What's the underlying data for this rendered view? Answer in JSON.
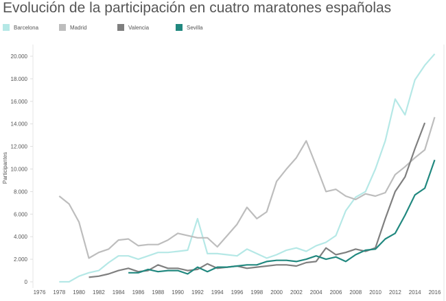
{
  "chart_data": {
    "type": "line",
    "title": "Evolución de la participación en cuatro maratones españolas",
    "xlabel": "",
    "ylabel": "Participantes",
    "xlim": [
      1976,
      2016
    ],
    "ylim": [
      0,
      21000
    ],
    "x_ticks": [
      "1976",
      "1978",
      "1980",
      "1982",
      "1984",
      "1986",
      "1988",
      "1990",
      "1992",
      "1994",
      "1996",
      "1998",
      "2000",
      "2002",
      "2004",
      "2006",
      "2008",
      "2010",
      "2012",
      "2014",
      "2016"
    ],
    "y_ticks": [
      "0",
      "2.000",
      "4.000",
      "6.000",
      "8.000",
      "10.000",
      "12.000",
      "14.000",
      "16.000",
      "18.000",
      "20.000"
    ],
    "y_tick_values": [
      0,
      2000,
      4000,
      6000,
      8000,
      10000,
      12000,
      14000,
      16000,
      18000,
      20000
    ],
    "grid": false,
    "legend_placement": "top",
    "series": [
      {
        "name": "Barcelona",
        "color": "#b5e8e6",
        "start": 1978,
        "values": [
          0,
          0,
          500,
          800,
          1000,
          1700,
          2300,
          2300,
          2000,
          2300,
          2600,
          2600,
          2700,
          2800,
          5600,
          2500,
          2500,
          2400,
          2300,
          2900,
          2500,
          2100,
          2400,
          2800,
          3000,
          2700,
          3200,
          3500,
          4100,
          6300,
          7500,
          8000,
          10000,
          12500,
          16200,
          14800,
          17900,
          19200,
          20200
        ]
      },
      {
        "name": "Madrid",
        "color": "#bdbdbd",
        "start": 1978,
        "values": [
          7600,
          6900,
          5300,
          2100,
          2600,
          2900,
          3700,
          3800,
          3200,
          3300,
          3300,
          3700,
          4300,
          4100,
          3900,
          3900,
          3100,
          4100,
          5100,
          6600,
          5600,
          6200,
          8900,
          10000,
          11000,
          12500,
          10300,
          8000,
          8200,
          7600,
          7300,
          7800,
          7600,
          7900,
          9500,
          10200,
          11000,
          11700,
          14600
        ]
      },
      {
        "name": "Valencia",
        "color": "#7f7f7f",
        "start": 1981,
        "values": [
          400,
          500,
          700,
          1000,
          1200,
          900,
          1000,
          1500,
          1200,
          1200,
          1000,
          1100,
          1600,
          1200,
          1300,
          1400,
          1200,
          1300,
          1400,
          1500,
          1500,
          1400,
          1700,
          1800,
          3000,
          2400,
          2600,
          2900,
          2700,
          3000,
          5600,
          8000,
          9300,
          11800,
          14100
        ]
      },
      {
        "name": "Sevilla",
        "color": "#21887f",
        "start": 1985,
        "values": [
          800,
          800,
          1100,
          900,
          1000,
          1000,
          700,
          1300,
          900,
          1300,
          1300,
          1400,
          1500,
          1500,
          1800,
          1900,
          1900,
          1800,
          2000,
          2300,
          2000,
          2200,
          1800,
          2400,
          2800,
          2900,
          3800,
          4300,
          5900,
          7700,
          8300,
          10800
        ]
      }
    ]
  }
}
